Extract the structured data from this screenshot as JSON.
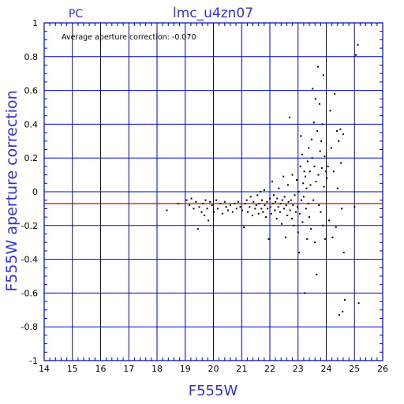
{
  "chart_data": {
    "type": "scatter",
    "title": "lmc_u4zn07",
    "subtitle": "PC",
    "xlabel": "F555W",
    "ylabel": "F555W aperture correction",
    "annotation": "Average aperture correction: -0.070",
    "xlim": [
      14,
      26
    ],
    "ylim": [
      -1,
      1
    ],
    "x_ticks": [
      "14",
      "15",
      "16",
      "17",
      "18",
      "19",
      "20",
      "21",
      "22",
      "23",
      "24",
      "25",
      "26"
    ],
    "y_ticks": [
      "-1",
      "-0.8",
      "-0.6",
      "-0.4",
      "-0.2",
      "0",
      "0.2",
      "0.4",
      "0.6",
      "0.8",
      "1"
    ],
    "grid": true,
    "reference_line": {
      "y": -0.07,
      "color": "#cc0000"
    },
    "colors": {
      "axes": "#0000aa",
      "grid": "#0000cc",
      "points": "#000000",
      "text": "#3333cc"
    },
    "points": [
      [
        18.35,
        -0.11
      ],
      [
        18.75,
        -0.07
      ],
      [
        19.05,
        -0.05
      ],
      [
        19.15,
        -0.08
      ],
      [
        19.22,
        -0.04
      ],
      [
        19.3,
        -0.1
      ],
      [
        19.38,
        -0.06
      ],
      [
        19.45,
        -0.22
      ],
      [
        19.5,
        -0.09
      ],
      [
        19.58,
        -0.12
      ],
      [
        19.62,
        -0.07
      ],
      [
        19.68,
        -0.14
      ],
      [
        19.72,
        -0.05
      ],
      [
        19.78,
        -0.1
      ],
      [
        19.82,
        -0.17
      ],
      [
        19.88,
        -0.06
      ],
      [
        19.95,
        -0.08
      ],
      [
        20.02,
        -0.12
      ],
      [
        20.1,
        -0.05
      ],
      [
        20.15,
        -0.1
      ],
      [
        20.25,
        -0.07
      ],
      [
        20.32,
        -0.13
      ],
      [
        20.4,
        -0.06
      ],
      [
        20.45,
        -0.09
      ],
      [
        20.52,
        -0.11
      ],
      [
        20.6,
        -0.08
      ],
      [
        20.68,
        -0.12
      ],
      [
        20.75,
        -0.07
      ],
      [
        20.82,
        -0.1
      ],
      [
        20.88,
        -0.06
      ],
      [
        20.95,
        -0.09
      ],
      [
        21.02,
        -0.11
      ],
      [
        21.08,
        -0.21
      ],
      [
        21.12,
        -0.07
      ],
      [
        21.18,
        -0.05
      ],
      [
        21.22,
        -0.12
      ],
      [
        21.28,
        -0.09
      ],
      [
        21.32,
        -0.03
      ],
      [
        21.38,
        -0.14
      ],
      [
        21.42,
        -0.06
      ],
      [
        21.48,
        -0.1
      ],
      [
        21.52,
        -0.08
      ],
      [
        21.56,
        -0.02
      ],
      [
        21.6,
        -0.13
      ],
      [
        21.62,
        -0.07
      ],
      [
        21.66,
        0.0
      ],
      [
        21.7,
        -0.1
      ],
      [
        21.72,
        -0.05
      ],
      [
        21.76,
        -0.12
      ],
      [
        21.8,
        0.01
      ],
      [
        21.82,
        -0.08
      ],
      [
        21.86,
        -0.15
      ],
      [
        21.9,
        -0.06
      ],
      [
        21.92,
        -0.1
      ],
      [
        21.96,
        -0.28
      ],
      [
        22.0,
        -0.04
      ],
      [
        22.02,
        -0.09
      ],
      [
        22.05,
        -0.13
      ],
      [
        22.08,
        0.06
      ],
      [
        22.1,
        -0.07
      ],
      [
        22.14,
        -0.02
      ],
      [
        22.18,
        -0.11
      ],
      [
        22.2,
        -0.06
      ],
      [
        22.24,
        -0.16
      ],
      [
        22.26,
        -0.04
      ],
      [
        22.3,
        -0.09
      ],
      [
        22.32,
        0.02
      ],
      [
        22.36,
        -0.12
      ],
      [
        22.38,
        -0.07
      ],
      [
        22.42,
        -0.19
      ],
      [
        22.44,
        -0.05
      ],
      [
        22.48,
        0.09
      ],
      [
        22.5,
        -0.1
      ],
      [
        22.52,
        -0.03
      ],
      [
        22.56,
        -0.27
      ],
      [
        22.58,
        -0.08
      ],
      [
        22.62,
        -0.14
      ],
      [
        22.64,
        0.04
      ],
      [
        22.66,
        -0.06
      ],
      [
        22.7,
        0.44
      ],
      [
        22.72,
        -0.11
      ],
      [
        22.75,
        -0.05
      ],
      [
        22.78,
        -0.16
      ],
      [
        22.8,
        0.1
      ],
      [
        22.82,
        -0.08
      ],
      [
        22.85,
        -0.2
      ],
      [
        22.88,
        -0.02
      ],
      [
        22.92,
        -0.12
      ],
      [
        22.95,
        0.07
      ],
      [
        22.98,
        -0.09
      ],
      [
        23.0,
        -0.24
      ],
      [
        23.02,
        0.0
      ],
      [
        23.04,
        -0.36
      ],
      [
        23.06,
        -0.13
      ],
      [
        23.08,
        0.15
      ],
      [
        23.1,
        0.33
      ],
      [
        23.12,
        -0.05
      ],
      [
        23.14,
        0.22
      ],
      [
        23.16,
        -0.18
      ],
      [
        23.18,
        0.05
      ],
      [
        23.2,
        -0.03
      ],
      [
        23.22,
        0.12
      ],
      [
        23.24,
        -0.6
      ],
      [
        23.26,
        0.09
      ],
      [
        23.28,
        -0.1
      ],
      [
        23.3,
        0.02
      ],
      [
        23.32,
        -0.28
      ],
      [
        23.34,
        0.18
      ],
      [
        23.36,
        -0.07
      ],
      [
        23.38,
        0.26
      ],
      [
        23.4,
        -0.15
      ],
      [
        23.42,
        0.12
      ],
      [
        23.44,
        0.04
      ],
      [
        23.46,
        -0.22
      ],
      [
        23.48,
        0.31
      ],
      [
        23.5,
        0.2
      ],
      [
        23.52,
        0.61
      ],
      [
        23.54,
        -0.05
      ],
      [
        23.56,
        0.41
      ],
      [
        23.58,
        0.15
      ],
      [
        23.6,
        -0.3
      ],
      [
        23.62,
        0.55
      ],
      [
        23.64,
        0.06
      ],
      [
        23.66,
        -0.49
      ],
      [
        23.68,
        0.36
      ],
      [
        23.7,
        0.74
      ],
      [
        23.72,
        0.1
      ],
      [
        23.74,
        -0.08
      ],
      [
        23.76,
        0.52
      ],
      [
        23.78,
        0.24
      ],
      [
        23.8,
        -0.12
      ],
      [
        23.82,
        0.3
      ],
      [
        23.84,
        0.14
      ],
      [
        23.86,
        0.4
      ],
      [
        23.88,
        -0.2
      ],
      [
        23.9,
        0.69
      ],
      [
        23.92,
        0.03
      ],
      [
        23.94,
        0.21
      ],
      [
        23.96,
        -0.28
      ],
      [
        23.98,
        0.12
      ],
      [
        24.02,
        0.08
      ],
      [
        24.06,
        0.15
      ],
      [
        24.1,
        -0.17
      ],
      [
        24.14,
        0.48
      ],
      [
        24.18,
        0.26
      ],
      [
        24.22,
        -0.27
      ],
      [
        24.26,
        0.12
      ],
      [
        24.3,
        0.58
      ],
      [
        24.34,
        -0.21
      ],
      [
        24.38,
        0.36
      ],
      [
        24.4,
        0.02
      ],
      [
        24.44,
        0.3
      ],
      [
        24.46,
        -0.73
      ],
      [
        24.5,
        0.37
      ],
      [
        24.52,
        0.17
      ],
      [
        24.55,
        -0.1
      ],
      [
        24.58,
        -0.71
      ],
      [
        24.6,
        0.34
      ],
      [
        24.62,
        -0.36
      ],
      [
        24.66,
        -0.64
      ],
      [
        25.0,
        -0.09
      ],
      [
        25.05,
        0.81
      ],
      [
        25.12,
        0.87
      ],
      [
        25.15,
        -0.66
      ]
    ]
  }
}
